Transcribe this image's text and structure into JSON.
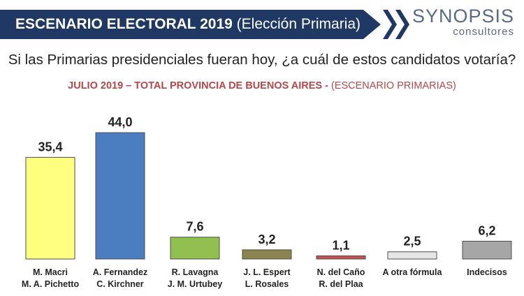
{
  "header": {
    "title_bold": "ESCENARIO ELECTORAL 2019",
    "title_normal": "(Elección Primaria)",
    "colors": {
      "bar": "#1f3864",
      "text": "#ffffff"
    }
  },
  "logo": {
    "main": "SYNOPSIS",
    "sub": "consultores",
    "color": "#5a6a80"
  },
  "question": "Si las Primarias presidenciales fueran hoy, ¿a cuál de estos candidatos votaría?",
  "subtitle": {
    "bold": "JULIO 2019 – TOTAL PROVINCIA DE BUENOS AIRES -",
    "normal": "(ESCENARIO PRIMARIAS)",
    "color": "#b3474a"
  },
  "chart_data": {
    "type": "bar",
    "categories": [
      [
        "M. Macri",
        "M. A. Pichetto"
      ],
      [
        "A. Fernandez",
        "C. Kirchner"
      ],
      [
        "R. Lavagna",
        "J. M. Urtubey"
      ],
      [
        "J. L. Espert",
        "L. Rosales"
      ],
      [
        "N. del Caño",
        "R. del Plaa"
      ],
      [
        "A otra fórmula"
      ],
      [
        "Indecisos"
      ]
    ],
    "values": [
      35.4,
      44.0,
      7.6,
      3.2,
      1.1,
      2.5,
      6.2
    ],
    "value_labels": [
      "35,4",
      "44,0",
      "7,6",
      "3,2",
      "1,1",
      "2,5",
      "6,2"
    ],
    "colors": [
      "#ffff80",
      "#4a7ec0",
      "#92c050",
      "#8b8450",
      "#c8504e",
      "#e6e6e6",
      "#a6a6a6"
    ],
    "gridlines": false,
    "legend": "none"
  }
}
